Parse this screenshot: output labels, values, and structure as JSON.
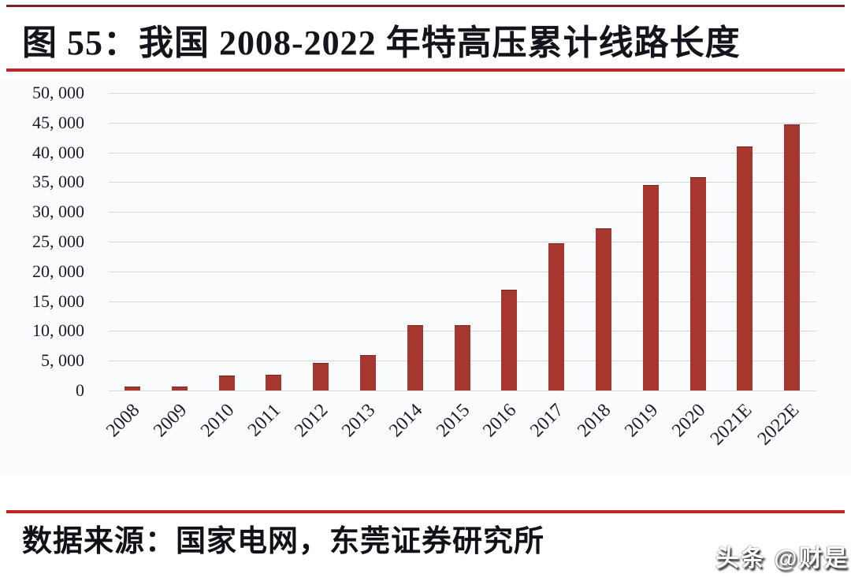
{
  "header": {
    "title": "图 55：我国 2008-2022 年特高压累计线路长度"
  },
  "decor": {
    "top_line_color": "#7a2220",
    "accent_line_color": "#c22423"
  },
  "chart_data": {
    "type": "bar",
    "title": "图 55：我国 2008-2022 年特高压累计线路长度",
    "categories": [
      "2008",
      "2009",
      "2010",
      "2011",
      "2012",
      "2013",
      "2014",
      "2015",
      "2016",
      "2017",
      "2018",
      "2019",
      "2020",
      "2021E",
      "2022E"
    ],
    "values": [
      640,
      640,
      2500,
      2600,
      4600,
      6000,
      11000,
      11000,
      16900,
      24700,
      27200,
      34500,
      35900,
      41000,
      44700
    ],
    "xlabel": "",
    "ylabel": "",
    "ylim": [
      0,
      50000
    ],
    "ytick_step": 5000,
    "ytick_labels": [
      "0",
      "5, 000",
      "10, 000",
      "15, 000",
      "20, 000",
      "25, 000",
      "30, 000",
      "35, 000",
      "40, 000",
      "45, 000",
      "50, 000"
    ],
    "grid": true,
    "legend": false,
    "bar_color": "#a6372e",
    "grid_color": "#d3d6da"
  },
  "footer": {
    "source_text": "数据来源：国家电网，东莞证券研究所"
  },
  "watermark": {
    "text": "头条 @财是"
  }
}
